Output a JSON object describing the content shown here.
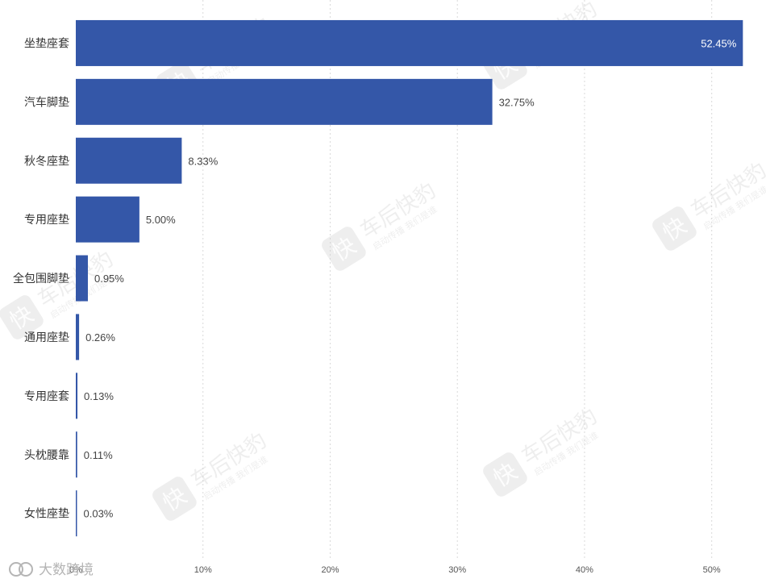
{
  "chart_data": {
    "type": "bar",
    "orientation": "horizontal",
    "categories": [
      "坐垫座套",
      "汽车脚垫",
      "秋冬座垫",
      "专用座垫",
      "全包围脚垫",
      "通用座垫",
      "专用座套",
      "头枕腰靠",
      "女性座垫"
    ],
    "values": [
      52.45,
      32.75,
      8.33,
      5.0,
      0.95,
      0.26,
      0.13,
      0.11,
      0.03
    ],
    "value_labels": [
      "52.45%",
      "32.75%",
      "8.33%",
      "5.00%",
      "0.95%",
      "0.26%",
      "0.13%",
      "0.11%",
      "0.03%"
    ],
    "xticks": [
      0,
      10,
      20,
      30,
      40,
      50
    ],
    "xtick_labels": [
      "0%",
      "10%",
      "20%",
      "30%",
      "40%",
      "50%"
    ],
    "xlim": [
      0,
      53
    ],
    "bar_color": "#3457A8",
    "grid": "vertical dashed",
    "title": "",
    "xlabel": "",
    "ylabel": ""
  },
  "watermark": {
    "brand": "车后快豹",
    "tagline": "启动传播 我们是谁",
    "logo_char": "快"
  },
  "footer": {
    "brand_text": "大数跨境"
  }
}
